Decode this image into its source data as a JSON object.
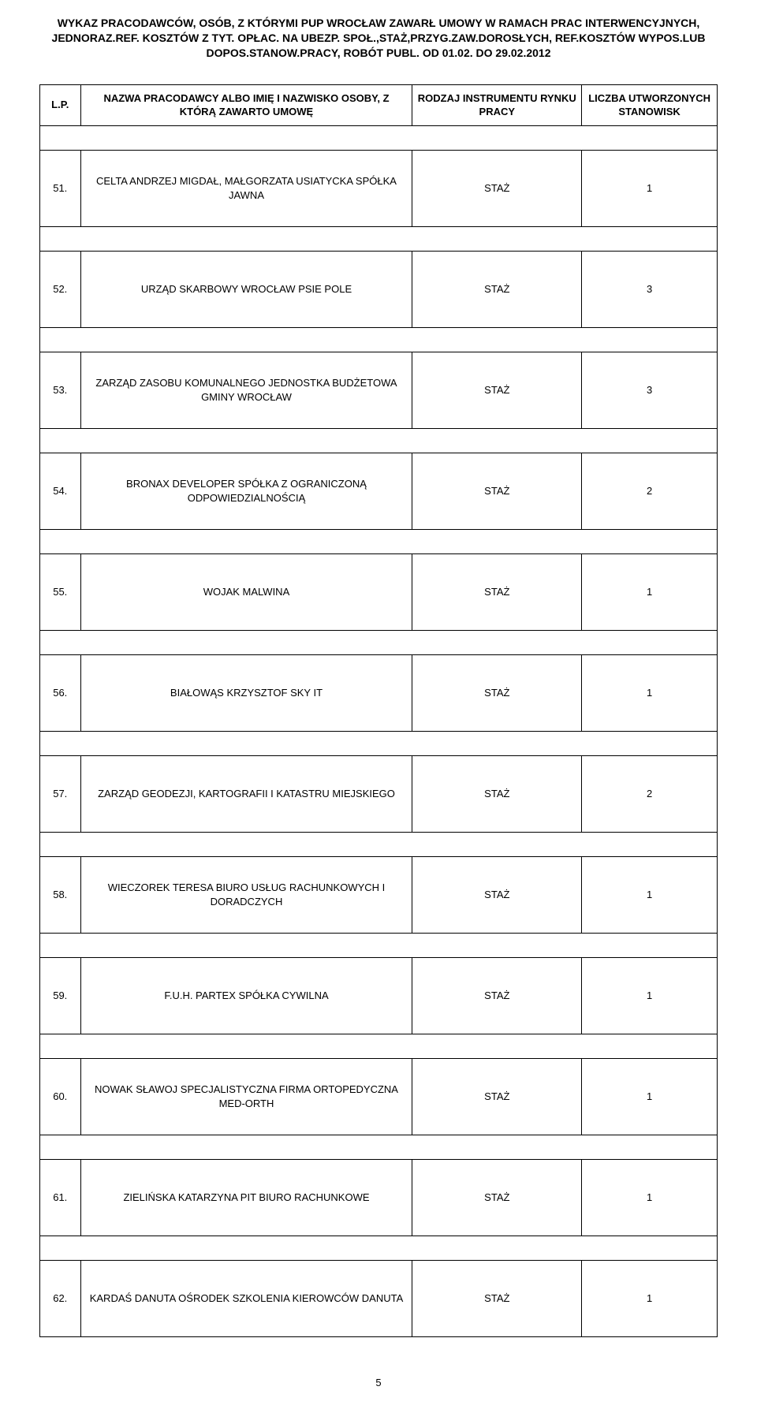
{
  "doc_title": "WYKAZ PRACODAWCÓW, OSÓB, Z KTÓRYMI PUP WROCŁAW ZAWARŁ UMOWY W RAMACH PRAC INTERWENCYJNYCH, JEDNORAZ.REF. KOSZTÓW Z TYT. OPŁAC. NA UBEZP. SPOŁ.,STAŻ,PRZYG.ZAW.DOROSŁYCH, REF.KOSZTÓW WYPOS.LUB DOPOS.STANOW.PRACY, ROBÓT PUBL. OD 01.02. DO 29.02.2012",
  "headers": {
    "lp": "L.P.",
    "name": "NAZWA PRACODAWCY ALBO IMIĘ I NAZWISKO OSOBY, Z KTÓRĄ ZAWARTO UMOWĘ",
    "instrument": "RODZAJ INSTRUMENTU RYNKU PRACY",
    "count": "LICZBA UTWORZONYCH STANOWISK"
  },
  "rows": [
    {
      "lp": "51.",
      "name": "CELTA ANDRZEJ MIGDAŁ, MAŁGORZATA USIATYCKA SPÓŁKA JAWNA",
      "instrument": "STAŻ",
      "count": "1"
    },
    {
      "lp": "52.",
      "name": "URZĄD SKARBOWY WROCŁAW PSIE POLE",
      "instrument": "STAŻ",
      "count": "3"
    },
    {
      "lp": "53.",
      "name": "ZARZĄD ZASOBU KOMUNALNEGO JEDNOSTKA BUDŻETOWA GMINY WROCŁAW",
      "instrument": "STAŻ",
      "count": "3"
    },
    {
      "lp": "54.",
      "name": "BRONAX DEVELOPER  SPÓŁKA Z OGRANICZONĄ ODPOWIEDZIALNOŚCIĄ",
      "instrument": "STAŻ",
      "count": "2"
    },
    {
      "lp": "55.",
      "name": "WOJAK MALWINA",
      "instrument": "STAŻ",
      "count": "1"
    },
    {
      "lp": "56.",
      "name": "BIAŁOWĄS KRZYSZTOF SKY IT",
      "instrument": "STAŻ",
      "count": "1"
    },
    {
      "lp": "57.",
      "name": "ZARZĄD GEODEZJI, KARTOGRAFII I KATASTRU MIEJSKIEGO",
      "instrument": "STAŻ",
      "count": "2"
    },
    {
      "lp": "58.",
      "name": "WIECZOREK TERESA BIURO USŁUG RACHUNKOWYCH I DORADCZYCH",
      "instrument": "STAŻ",
      "count": "1"
    },
    {
      "lp": "59.",
      "name": "F.U.H. PARTEX SPÓŁKA CYWILNA",
      "instrument": "STAŻ",
      "count": "1"
    },
    {
      "lp": "60.",
      "name": "NOWAK SŁAWOJ SPECJALISTYCZNA FIRMA ORTOPEDYCZNA MED-ORTH",
      "instrument": "STAŻ",
      "count": "1"
    },
    {
      "lp": "61.",
      "name": "ZIELIŃSKA KATARZYNA PIT BIURO RACHUNKOWE",
      "instrument": "STAŻ",
      "count": "1"
    },
    {
      "lp": "62.",
      "name": "KARDAŚ DANUTA OŚRODEK SZKOLENIA KIEROWCÓW DANUTA",
      "instrument": "STAŻ",
      "count": "1"
    }
  ],
  "page_number": "5"
}
